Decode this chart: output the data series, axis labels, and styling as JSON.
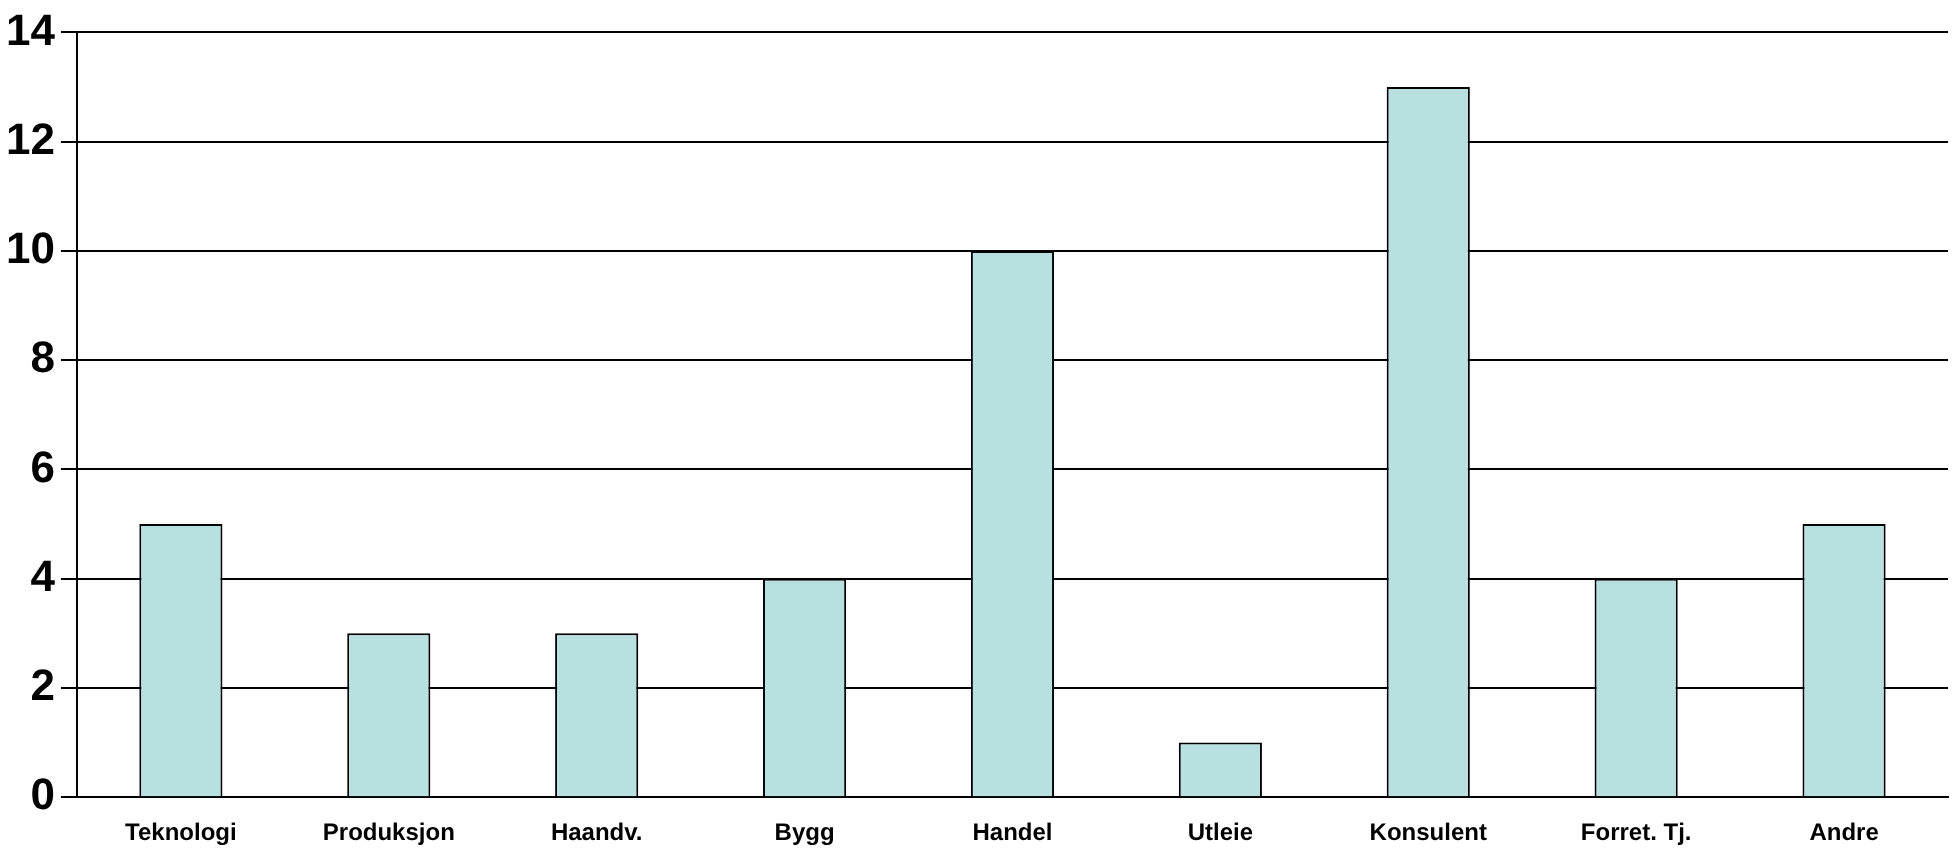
{
  "chart_data": {
    "type": "bar",
    "categories": [
      "Teknologi",
      "Produksjon",
      "Haandv.",
      "Bygg",
      "Handel",
      "Utleie",
      "Konsulent",
      "Forret. Tj.",
      "Andre"
    ],
    "values": [
      5,
      3,
      3,
      4,
      10,
      1,
      13,
      4,
      5
    ],
    "color": "#b8e0e0",
    "ylim": [
      0,
      14
    ],
    "yticks": [
      0,
      2,
      4,
      6,
      8,
      10,
      12,
      14
    ],
    "grid": "y",
    "legend": false
  }
}
